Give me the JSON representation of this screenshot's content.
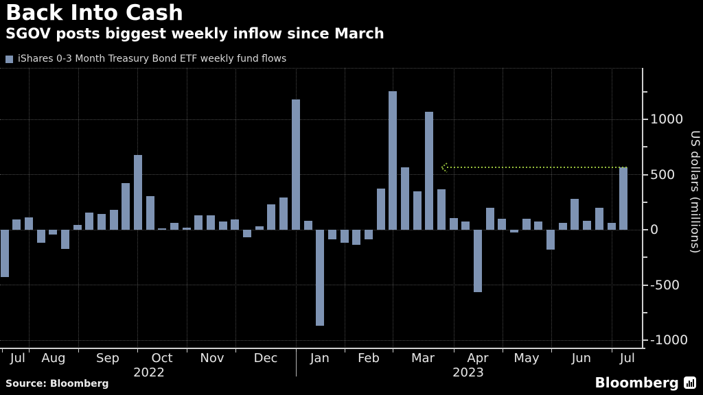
{
  "header": {
    "title": "Back Into Cash",
    "subtitle": "SGOV posts biggest weekly inflow since March"
  },
  "legend": {
    "label": "iShares 0-3 Month Treasury Bond ETF weekly fund flows",
    "swatch_color": "#7e93b3"
  },
  "footer": {
    "source": "Source: Bloomberg",
    "logo_text": "Bloomberg",
    "logo_icon": "bloomberg-terminal-icon"
  },
  "chart_data": {
    "type": "bar",
    "title": "Back Into Cash",
    "subtitle": "SGOV posts biggest weekly inflow since March",
    "series_name": "iShares 0-3 Month Treasury Bond ETF weekly fund flows",
    "frequency": "weekly",
    "ylabel": "US dollars (millions)",
    "x_month_labels": [
      "Jul",
      "Aug",
      "Sep",
      "Oct",
      "Nov",
      "Dec",
      "Jan",
      "Feb",
      "Mar",
      "Apr",
      "May",
      "Jun",
      "Jul"
    ],
    "x_year_labels": [
      "2022",
      "2023"
    ],
    "values": [
      -430,
      95,
      110,
      -120,
      -45,
      -175,
      45,
      155,
      140,
      180,
      425,
      680,
      305,
      15,
      60,
      20,
      130,
      130,
      75,
      95,
      -70,
      30,
      230,
      290,
      1180,
      80,
      -870,
      -90,
      -115,
      -135,
      -90,
      375,
      1255,
      565,
      345,
      1070,
      365,
      105,
      75,
      -565,
      200,
      100,
      -25,
      100,
      75,
      -180,
      65,
      280,
      80,
      200,
      65,
      565
    ],
    "ylim": [
      -1090,
      1460
    ],
    "ytick_labels": [
      1000,
      500,
      0,
      -500,
      -1000
    ],
    "ytick_minor": [
      1250,
      750,
      250,
      -250,
      -750
    ],
    "grid": "dotted",
    "legend_position": "top-left",
    "bar_color": "#7e93b3",
    "annotation": {
      "shape": "dotted-line-with-left-arrow",
      "color": "#9bc53d",
      "at_value": 565,
      "from_week_index": 37,
      "to_week_index": 52
    }
  }
}
